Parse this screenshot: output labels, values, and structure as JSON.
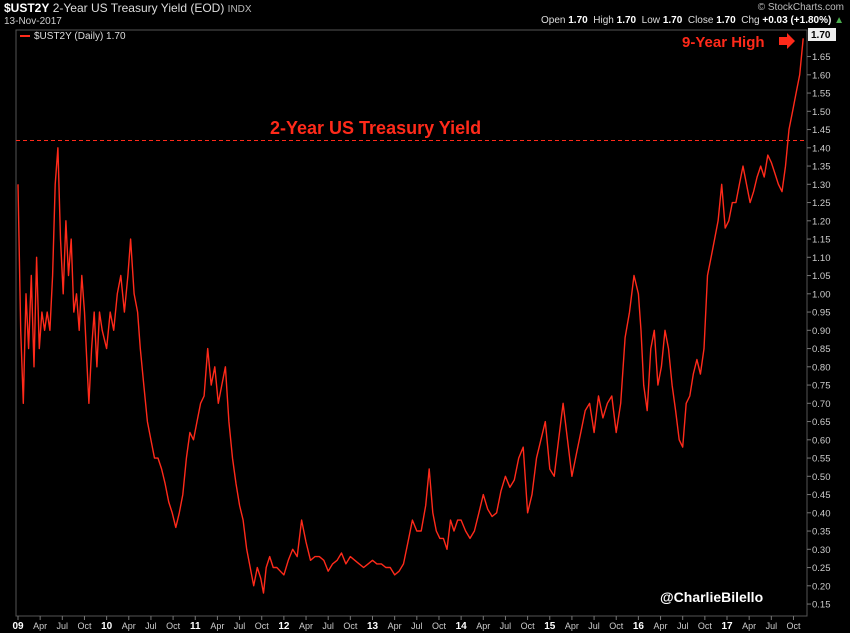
{
  "header": {
    "symbol": "$UST2Y",
    "name": "2-Year US Treasury Yield (EOD)",
    "exchange": "INDX",
    "date": "13-Nov-2017",
    "brand": "© StockCharts.com",
    "open_label": "Open",
    "open": "1.70",
    "high_label": "High",
    "high": "1.70",
    "low_label": "Low",
    "low": "1.70",
    "close_label": "Close",
    "close": "1.70",
    "chg_label": "Chg",
    "chg": "+0.03 (+1.80%)",
    "chg_arrow": "▲"
  },
  "legend": {
    "text": "$UST2Y (Daily) 1.70"
  },
  "annotations": {
    "title": "2-Year US Treasury Yield",
    "high_note": "9-Year High",
    "credit": "@CharlieBilello",
    "last_value": "1.70",
    "ref_level": 1.42
  },
  "colors": {
    "series": "#ff2a1a",
    "annotation": "#ff2a1a",
    "background": "#000000",
    "grid": "#333333"
  },
  "chart_data": {
    "type": "line",
    "title": "2-Year US Treasury Yield",
    "series": [
      {
        "name": "$UST2Y (Daily) 1.70"
      }
    ],
    "x_ticks": [
      {
        "label": "09",
        "t": 2009.0
      },
      {
        "label": "Apr",
        "t": 2009.25
      },
      {
        "label": "Jul",
        "t": 2009.5
      },
      {
        "label": "Oct",
        "t": 2009.75
      },
      {
        "label": "10",
        "t": 2010.0
      },
      {
        "label": "Apr",
        "t": 2010.25
      },
      {
        "label": "Jul",
        "t": 2010.5
      },
      {
        "label": "Oct",
        "t": 2010.75
      },
      {
        "label": "11",
        "t": 2011.0
      },
      {
        "label": "Apr",
        "t": 2011.25
      },
      {
        "label": "Jul",
        "t": 2011.5
      },
      {
        "label": "Oct",
        "t": 2011.75
      },
      {
        "label": "12",
        "t": 2012.0
      },
      {
        "label": "Apr",
        "t": 2012.25
      },
      {
        "label": "Jul",
        "t": 2012.5
      },
      {
        "label": "Oct",
        "t": 2012.75
      },
      {
        "label": "13",
        "t": 2013.0
      },
      {
        "label": "Apr",
        "t": 2013.25
      },
      {
        "label": "Jul",
        "t": 2013.5
      },
      {
        "label": "Oct",
        "t": 2013.75
      },
      {
        "label": "14",
        "t": 2014.0
      },
      {
        "label": "Apr",
        "t": 2014.25
      },
      {
        "label": "Jul",
        "t": 2014.5
      },
      {
        "label": "Oct",
        "t": 2014.75
      },
      {
        "label": "15",
        "t": 2015.0
      },
      {
        "label": "Apr",
        "t": 2015.25
      },
      {
        "label": "Jul",
        "t": 2015.5
      },
      {
        "label": "Oct",
        "t": 2015.75
      },
      {
        "label": "16",
        "t": 2016.0
      },
      {
        "label": "Apr",
        "t": 2016.25
      },
      {
        "label": "Jul",
        "t": 2016.5
      },
      {
        "label": "Oct",
        "t": 2016.75
      },
      {
        "label": "17",
        "t": 2017.0
      },
      {
        "label": "Apr",
        "t": 2017.25
      },
      {
        "label": "Jul",
        "t": 2017.5
      },
      {
        "label": "Oct",
        "t": 2017.75
      }
    ],
    "y_ticks": [
      "0.15",
      "0.20",
      "0.25",
      "0.30",
      "0.35",
      "0.40",
      "0.45",
      "0.50",
      "0.55",
      "0.60",
      "0.65",
      "0.70",
      "0.75",
      "0.80",
      "0.85",
      "0.90",
      "0.95",
      "1.00",
      "1.05",
      "1.10",
      "1.15",
      "1.20",
      "1.25",
      "1.30",
      "1.35",
      "1.40",
      "1.45",
      "1.50",
      "1.55",
      "1.60",
      "1.65"
    ],
    "ylim": [
      0.12,
      1.72
    ],
    "xlim": [
      2009.0,
      2017.88
    ],
    "points": [
      [
        2009.0,
        1.3
      ],
      [
        2009.03,
        0.9
      ],
      [
        2009.06,
        0.7
      ],
      [
        2009.09,
        1.0
      ],
      [
        2009.12,
        0.85
      ],
      [
        2009.15,
        1.05
      ],
      [
        2009.18,
        0.8
      ],
      [
        2009.21,
        1.1
      ],
      [
        2009.24,
        0.85
      ],
      [
        2009.27,
        0.95
      ],
      [
        2009.3,
        0.9
      ],
      [
        2009.33,
        0.95
      ],
      [
        2009.36,
        0.9
      ],
      [
        2009.39,
        1.05
      ],
      [
        2009.42,
        1.3
      ],
      [
        2009.45,
        1.4
      ],
      [
        2009.48,
        1.15
      ],
      [
        2009.51,
        1.0
      ],
      [
        2009.54,
        1.2
      ],
      [
        2009.57,
        1.05
      ],
      [
        2009.6,
        1.15
      ],
      [
        2009.63,
        0.95
      ],
      [
        2009.66,
        1.0
      ],
      [
        2009.69,
        0.9
      ],
      [
        2009.72,
        1.05
      ],
      [
        2009.75,
        0.95
      ],
      [
        2009.78,
        0.8
      ],
      [
        2009.8,
        0.7
      ],
      [
        2009.83,
        0.85
      ],
      [
        2009.86,
        0.95
      ],
      [
        2009.89,
        0.8
      ],
      [
        2009.92,
        0.95
      ],
      [
        2009.95,
        0.9
      ],
      [
        2010.0,
        0.85
      ],
      [
        2010.04,
        0.95
      ],
      [
        2010.08,
        0.9
      ],
      [
        2010.12,
        1.0
      ],
      [
        2010.16,
        1.05
      ],
      [
        2010.2,
        0.95
      ],
      [
        2010.24,
        1.05
      ],
      [
        2010.27,
        1.15
      ],
      [
        2010.31,
        1.0
      ],
      [
        2010.35,
        0.95
      ],
      [
        2010.38,
        0.85
      ],
      [
        2010.42,
        0.75
      ],
      [
        2010.46,
        0.65
      ],
      [
        2010.5,
        0.6
      ],
      [
        2010.54,
        0.55
      ],
      [
        2010.58,
        0.55
      ],
      [
        2010.62,
        0.52
      ],
      [
        2010.66,
        0.48
      ],
      [
        2010.7,
        0.43
      ],
      [
        2010.74,
        0.4
      ],
      [
        2010.78,
        0.36
      ],
      [
        2010.82,
        0.4
      ],
      [
        2010.86,
        0.45
      ],
      [
        2010.9,
        0.55
      ],
      [
        2010.94,
        0.62
      ],
      [
        2010.98,
        0.6
      ],
      [
        2011.02,
        0.65
      ],
      [
        2011.06,
        0.7
      ],
      [
        2011.1,
        0.72
      ],
      [
        2011.14,
        0.85
      ],
      [
        2011.18,
        0.75
      ],
      [
        2011.22,
        0.8
      ],
      [
        2011.26,
        0.7
      ],
      [
        2011.3,
        0.75
      ],
      [
        2011.34,
        0.8
      ],
      [
        2011.38,
        0.65
      ],
      [
        2011.42,
        0.55
      ],
      [
        2011.46,
        0.48
      ],
      [
        2011.5,
        0.42
      ],
      [
        2011.54,
        0.38
      ],
      [
        2011.58,
        0.3
      ],
      [
        2011.62,
        0.25
      ],
      [
        2011.66,
        0.2
      ],
      [
        2011.7,
        0.25
      ],
      [
        2011.74,
        0.22
      ],
      [
        2011.77,
        0.18
      ],
      [
        2011.8,
        0.25
      ],
      [
        2011.84,
        0.28
      ],
      [
        2011.88,
        0.25
      ],
      [
        2011.92,
        0.25
      ],
      [
        2011.96,
        0.24
      ],
      [
        2012.0,
        0.23
      ],
      [
        2012.05,
        0.27
      ],
      [
        2012.1,
        0.3
      ],
      [
        2012.15,
        0.28
      ],
      [
        2012.2,
        0.38
      ],
      [
        2012.25,
        0.32
      ],
      [
        2012.3,
        0.27
      ],
      [
        2012.35,
        0.28
      ],
      [
        2012.4,
        0.28
      ],
      [
        2012.45,
        0.27
      ],
      [
        2012.5,
        0.24
      ],
      [
        2012.55,
        0.26
      ],
      [
        2012.6,
        0.27
      ],
      [
        2012.65,
        0.29
      ],
      [
        2012.7,
        0.26
      ],
      [
        2012.75,
        0.28
      ],
      [
        2012.8,
        0.27
      ],
      [
        2012.85,
        0.26
      ],
      [
        2012.9,
        0.25
      ],
      [
        2012.95,
        0.26
      ],
      [
        2013.0,
        0.27
      ],
      [
        2013.05,
        0.26
      ],
      [
        2013.1,
        0.26
      ],
      [
        2013.15,
        0.25
      ],
      [
        2013.2,
        0.25
      ],
      [
        2013.25,
        0.23
      ],
      [
        2013.3,
        0.24
      ],
      [
        2013.35,
        0.26
      ],
      [
        2013.4,
        0.32
      ],
      [
        2013.45,
        0.38
      ],
      [
        2013.5,
        0.35
      ],
      [
        2013.55,
        0.35
      ],
      [
        2013.6,
        0.42
      ],
      [
        2013.64,
        0.52
      ],
      [
        2013.68,
        0.4
      ],
      [
        2013.72,
        0.35
      ],
      [
        2013.76,
        0.33
      ],
      [
        2013.8,
        0.33
      ],
      [
        2013.84,
        0.3
      ],
      [
        2013.88,
        0.38
      ],
      [
        2013.92,
        0.35
      ],
      [
        2013.96,
        0.38
      ],
      [
        2014.0,
        0.38
      ],
      [
        2014.05,
        0.35
      ],
      [
        2014.1,
        0.33
      ],
      [
        2014.15,
        0.35
      ],
      [
        2014.2,
        0.4
      ],
      [
        2014.25,
        0.45
      ],
      [
        2014.3,
        0.41
      ],
      [
        2014.35,
        0.39
      ],
      [
        2014.4,
        0.4
      ],
      [
        2014.45,
        0.46
      ],
      [
        2014.5,
        0.5
      ],
      [
        2014.55,
        0.47
      ],
      [
        2014.6,
        0.49
      ],
      [
        2014.65,
        0.55
      ],
      [
        2014.7,
        0.58
      ],
      [
        2014.75,
        0.4
      ],
      [
        2014.8,
        0.45
      ],
      [
        2014.85,
        0.55
      ],
      [
        2014.9,
        0.6
      ],
      [
        2014.95,
        0.65
      ],
      [
        2015.0,
        0.52
      ],
      [
        2015.05,
        0.5
      ],
      [
        2015.1,
        0.6
      ],
      [
        2015.15,
        0.7
      ],
      [
        2015.2,
        0.6
      ],
      [
        2015.25,
        0.5
      ],
      [
        2015.3,
        0.56
      ],
      [
        2015.35,
        0.62
      ],
      [
        2015.4,
        0.68
      ],
      [
        2015.45,
        0.7
      ],
      [
        2015.5,
        0.62
      ],
      [
        2015.55,
        0.72
      ],
      [
        2015.6,
        0.66
      ],
      [
        2015.65,
        0.7
      ],
      [
        2015.7,
        0.72
      ],
      [
        2015.75,
        0.62
      ],
      [
        2015.8,
        0.7
      ],
      [
        2015.85,
        0.88
      ],
      [
        2015.9,
        0.95
      ],
      [
        2015.95,
        1.05
      ],
      [
        2016.0,
        1.0
      ],
      [
        2016.03,
        0.9
      ],
      [
        2016.06,
        0.75
      ],
      [
        2016.1,
        0.68
      ],
      [
        2016.14,
        0.85
      ],
      [
        2016.18,
        0.9
      ],
      [
        2016.22,
        0.75
      ],
      [
        2016.26,
        0.8
      ],
      [
        2016.3,
        0.9
      ],
      [
        2016.34,
        0.85
      ],
      [
        2016.38,
        0.75
      ],
      [
        2016.42,
        0.68
      ],
      [
        2016.46,
        0.6
      ],
      [
        2016.5,
        0.58
      ],
      [
        2016.54,
        0.7
      ],
      [
        2016.58,
        0.72
      ],
      [
        2016.62,
        0.78
      ],
      [
        2016.66,
        0.82
      ],
      [
        2016.7,
        0.78
      ],
      [
        2016.74,
        0.85
      ],
      [
        2016.78,
        1.05
      ],
      [
        2016.82,
        1.1
      ],
      [
        2016.86,
        1.15
      ],
      [
        2016.9,
        1.2
      ],
      [
        2016.94,
        1.3
      ],
      [
        2016.98,
        1.18
      ],
      [
        2017.02,
        1.2
      ],
      [
        2017.06,
        1.25
      ],
      [
        2017.1,
        1.25
      ],
      [
        2017.14,
        1.3
      ],
      [
        2017.18,
        1.35
      ],
      [
        2017.22,
        1.3
      ],
      [
        2017.26,
        1.25
      ],
      [
        2017.3,
        1.28
      ],
      [
        2017.34,
        1.32
      ],
      [
        2017.38,
        1.35
      ],
      [
        2017.42,
        1.32
      ],
      [
        2017.46,
        1.38
      ],
      [
        2017.5,
        1.36
      ],
      [
        2017.54,
        1.33
      ],
      [
        2017.58,
        1.3
      ],
      [
        2017.62,
        1.28
      ],
      [
        2017.66,
        1.35
      ],
      [
        2017.7,
        1.45
      ],
      [
        2017.74,
        1.5
      ],
      [
        2017.78,
        1.55
      ],
      [
        2017.82,
        1.6
      ],
      [
        2017.86,
        1.7
      ]
    ]
  }
}
